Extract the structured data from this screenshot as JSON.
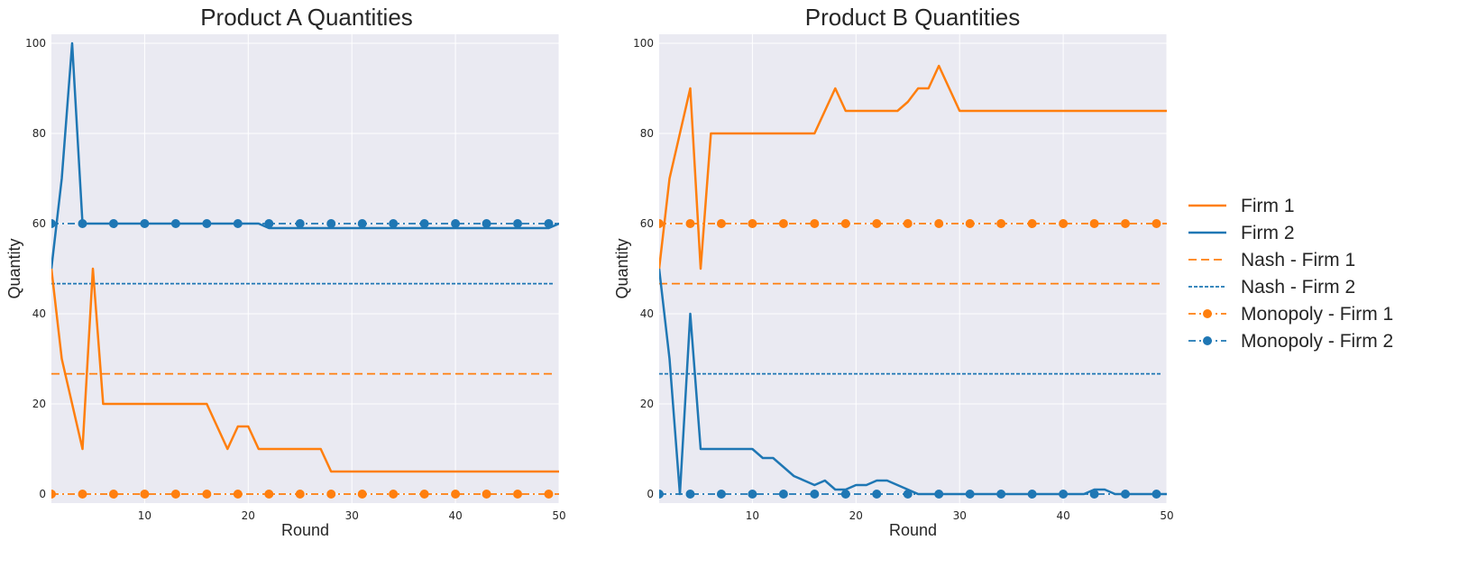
{
  "chart_data": [
    {
      "type": "line",
      "title": "Product A Quantities",
      "xlabel": "Round",
      "ylabel": "Quantity",
      "xlim": [
        1,
        50
      ],
      "ylim": [
        -2,
        102
      ],
      "xticks": [
        10,
        20,
        30,
        40,
        50
      ],
      "yticks": [
        0,
        20,
        40,
        60,
        80,
        100
      ],
      "grid": true,
      "series": [
        {
          "name": "Firm 1",
          "style": "solid",
          "color": "#ff7f0e",
          "x": [
            1,
            2,
            3,
            4,
            5,
            6,
            7,
            8,
            9,
            10,
            11,
            12,
            13,
            14,
            15,
            16,
            17,
            18,
            19,
            20,
            21,
            22,
            23,
            24,
            25,
            26,
            27,
            28,
            29,
            30,
            31,
            32,
            33,
            34,
            35,
            36,
            37,
            38,
            39,
            40,
            41,
            42,
            43,
            44,
            45,
            46,
            47,
            48,
            49,
            50
          ],
          "y": [
            50,
            30,
            20,
            10,
            50,
            20,
            20,
            20,
            20,
            20,
            20,
            20,
            20,
            20,
            20,
            20,
            15,
            10,
            15,
            15,
            10,
            10,
            10,
            10,
            10,
            10,
            10,
            5,
            5,
            5,
            5,
            5,
            5,
            5,
            5,
            5,
            5,
            5,
            5,
            5,
            5,
            5,
            5,
            5,
            5,
            5,
            5,
            5,
            5,
            5
          ]
        },
        {
          "name": "Firm 2",
          "style": "solid",
          "color": "#1f77b4",
          "x": [
            1,
            2,
            3,
            4,
            5,
            6,
            7,
            8,
            9,
            10,
            11,
            12,
            13,
            14,
            15,
            16,
            17,
            18,
            19,
            20,
            21,
            22,
            23,
            24,
            25,
            26,
            27,
            28,
            29,
            30,
            31,
            32,
            33,
            34,
            35,
            36,
            37,
            38,
            39,
            40,
            41,
            42,
            43,
            44,
            45,
            46,
            47,
            48,
            49,
            50
          ],
          "y": [
            50,
            70,
            100,
            60,
            60,
            60,
            60,
            60,
            60,
            60,
            60,
            60,
            60,
            60,
            60,
            60,
            60,
            60,
            60,
            60,
            60,
            59,
            59,
            59,
            59,
            59,
            59,
            59,
            59,
            59,
            59,
            59,
            59,
            59,
            59,
            59,
            59,
            59,
            59,
            59,
            59,
            59,
            59,
            59,
            59,
            59,
            59,
            59,
            59,
            60
          ]
        },
        {
          "name": "Nash - Firm 1",
          "style": "dashed",
          "color": "#ff7f0e",
          "constant": 26.67
        },
        {
          "name": "Nash - Firm 2",
          "style": "dotted",
          "color": "#1f77b4",
          "constant": 46.67
        },
        {
          "name": "Monopoly - Firm 1",
          "style": "dashdot-markers",
          "color": "#ff7f0e",
          "constant": 0
        },
        {
          "name": "Monopoly - Firm 2",
          "style": "dashdot-markers",
          "color": "#1f77b4",
          "constant": 60
        }
      ]
    },
    {
      "type": "line",
      "title": "Product B Quantities",
      "xlabel": "Round",
      "ylabel": "Quantity",
      "xlim": [
        1,
        50
      ],
      "ylim": [
        -2,
        102
      ],
      "xticks": [
        10,
        20,
        30,
        40,
        50
      ],
      "yticks": [
        0,
        20,
        40,
        60,
        80,
        100
      ],
      "grid": true,
      "series": [
        {
          "name": "Firm 1",
          "style": "solid",
          "color": "#ff7f0e",
          "x": [
            1,
            2,
            3,
            4,
            5,
            6,
            7,
            8,
            9,
            10,
            11,
            12,
            13,
            14,
            15,
            16,
            17,
            18,
            19,
            20,
            21,
            22,
            23,
            24,
            25,
            26,
            27,
            28,
            29,
            30,
            31,
            32,
            33,
            34,
            35,
            36,
            37,
            38,
            39,
            40,
            41,
            42,
            43,
            44,
            45,
            46,
            47,
            48,
            49,
            50
          ],
          "y": [
            50,
            70,
            80,
            90,
            50,
            80,
            80,
            80,
            80,
            80,
            80,
            80,
            80,
            80,
            80,
            80,
            85,
            90,
            85,
            85,
            85,
            85,
            85,
            85,
            87,
            90,
            90,
            95,
            90,
            85,
            85,
            85,
            85,
            85,
            85,
            85,
            85,
            85,
            85,
            85,
            85,
            85,
            85,
            85,
            85,
            85,
            85,
            85,
            85,
            85
          ]
        },
        {
          "name": "Firm 2",
          "style": "solid",
          "color": "#1f77b4",
          "x": [
            1,
            2,
            3,
            4,
            5,
            6,
            7,
            8,
            9,
            10,
            11,
            12,
            13,
            14,
            15,
            16,
            17,
            18,
            19,
            20,
            21,
            22,
            23,
            24,
            25,
            26,
            27,
            28,
            29,
            30,
            31,
            32,
            33,
            34,
            35,
            36,
            37,
            38,
            39,
            40,
            41,
            42,
            43,
            44,
            45,
            46,
            47,
            48,
            49,
            50
          ],
          "y": [
            50,
            30,
            0,
            40,
            10,
            10,
            10,
            10,
            10,
            10,
            8,
            8,
            6,
            4,
            3,
            2,
            3,
            1,
            1,
            2,
            2,
            3,
            3,
            2,
            1,
            0,
            0,
            0,
            0,
            0,
            0,
            0,
            0,
            0,
            0,
            0,
            0,
            0,
            0,
            0,
            0,
            0,
            1,
            1,
            0,
            0,
            0,
            0,
            0,
            0
          ]
        },
        {
          "name": "Nash - Firm 1",
          "style": "dashed",
          "color": "#ff7f0e",
          "constant": 46.67
        },
        {
          "name": "Nash - Firm 2",
          "style": "dotted",
          "color": "#1f77b4",
          "constant": 26.67
        },
        {
          "name": "Monopoly - Firm 1",
          "style": "dashdot-markers",
          "color": "#ff7f0e",
          "constant": 60
        },
        {
          "name": "Monopoly - Firm 2",
          "style": "dashdot-markers",
          "color": "#1f77b4",
          "constant": 0
        }
      ]
    }
  ],
  "legend": {
    "placement": "right",
    "entries": [
      {
        "label": "Firm 1",
        "style": "solid",
        "color": "#ff7f0e"
      },
      {
        "label": "Firm 2",
        "style": "solid",
        "color": "#1f77b4"
      },
      {
        "label": "Nash - Firm 1",
        "style": "dashed",
        "color": "#ff7f0e"
      },
      {
        "label": "Nash - Firm 2",
        "style": "dotted",
        "color": "#1f77b4"
      },
      {
        "label": "Monopoly - Firm 1",
        "style": "dashdot-markers",
        "color": "#ff7f0e"
      },
      {
        "label": "Monopoly - Firm 2",
        "style": "dashdot-markers",
        "color": "#1f77b4"
      }
    ]
  }
}
